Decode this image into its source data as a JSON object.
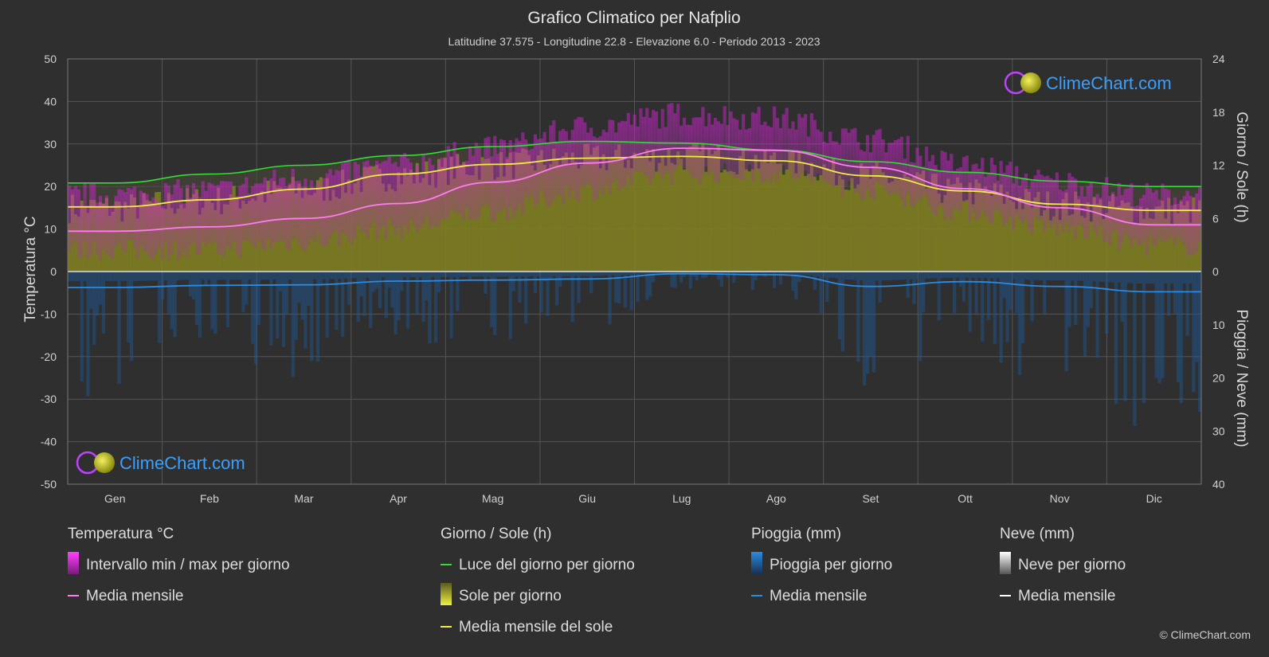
{
  "header": {
    "title": "Grafico Climatico per Nafplio",
    "subtitle": "Latitudine 37.575 - Longitudine 22.8 - Elevazione 6.0 - Periodo 2013 - 2023"
  },
  "logo_text": "ClimeChart.com",
  "copyright": "© ClimeChart.com",
  "chart_data": {
    "type": "area",
    "categories": [
      "Gen",
      "Feb",
      "Mar",
      "Apr",
      "Mag",
      "Giu",
      "Lug",
      "Ago",
      "Set",
      "Ott",
      "Nov",
      "Dic"
    ],
    "left_axis": {
      "label": "Temperatura °C",
      "range": [
        -50,
        50
      ],
      "ticks": [
        50,
        40,
        30,
        20,
        10,
        0,
        -10,
        -20,
        -30,
        -40,
        -50
      ]
    },
    "right_axis_top": {
      "label": "Giorno / Sole (h)",
      "range": [
        0,
        24
      ],
      "ticks": [
        24,
        18,
        12,
        6,
        0
      ]
    },
    "right_axis_bottom": {
      "label": "Pioggia / Neve (mm)",
      "range": [
        0,
        40
      ],
      "ticks": [
        0,
        10,
        20,
        30,
        40
      ]
    },
    "grid": true,
    "series": [
      {
        "name": "Intervallo min / max per giorno",
        "kind": "band",
        "axis": "temp",
        "min": [
          5,
          5,
          7,
          10,
          14,
          19,
          23,
          23,
          19,
          14,
          10,
          6
        ],
        "max": [
          18,
          19,
          22,
          25,
          29,
          34,
          37,
          36,
          31,
          25,
          21,
          18
        ]
      },
      {
        "name": "Media mensile",
        "kind": "line",
        "axis": "temp",
        "color": "#ff7cf0",
        "values": [
          9.5,
          10.5,
          12.5,
          16,
          21,
          25.5,
          29,
          28.5,
          24.5,
          19.5,
          15,
          11
        ]
      },
      {
        "name": "Luce del giorno per giorno",
        "kind": "line",
        "axis": "hours",
        "color": "#33dd33",
        "values": [
          10.0,
          11.0,
          12.0,
          13.1,
          14.1,
          14.7,
          14.5,
          13.7,
          12.4,
          11.2,
          10.2,
          9.6
        ]
      },
      {
        "name": "Sole per giorno",
        "kind": "area",
        "axis": "hours",
        "color": "#8a8a1e",
        "values": [
          7.2,
          8.0,
          9.2,
          10.8,
          12.0,
          12.7,
          13.0,
          12.5,
          10.7,
          9.0,
          7.5,
          6.9
        ]
      },
      {
        "name": "Media mensile del sole",
        "kind": "line",
        "axis": "hours",
        "color": "#eeee44",
        "values": [
          7.3,
          8.1,
          9.3,
          11.0,
          12.1,
          12.8,
          13.0,
          12.5,
          10.8,
          9.1,
          7.6,
          6.9
        ]
      },
      {
        "name": "Pioggia per giorno",
        "kind": "bars",
        "axis": "precip",
        "color": "#1e5a9a"
      },
      {
        "name": "Media mensile",
        "kind": "line",
        "axis": "precip",
        "color": "#2a8be0",
        "values": [
          3.0,
          2.6,
          2.5,
          1.8,
          1.6,
          1.4,
          0.4,
          0.6,
          2.8,
          1.9,
          2.8,
          3.8
        ]
      },
      {
        "name": "Neve per giorno",
        "kind": "bars",
        "axis": "precip",
        "color": "#e0e0e0"
      },
      {
        "name": "Media mensile",
        "kind": "line",
        "axis": "precip",
        "color": "#ffffff",
        "values": [
          0,
          0,
          0,
          0,
          0,
          0,
          0,
          0,
          0,
          0,
          0,
          0
        ]
      }
    ]
  },
  "legend": {
    "groups": [
      {
        "title": "Temperatura °C",
        "items": [
          {
            "label": "Intervallo min / max per giorno",
            "swatch": "rect",
            "color": "#e030d8"
          },
          {
            "label": "Media mensile",
            "swatch": "line",
            "color": "#ff7cf0"
          }
        ]
      },
      {
        "title": "Giorno / Sole (h)",
        "items": [
          {
            "label": "Luce del giorno per giorno",
            "swatch": "line",
            "color": "#33dd33"
          },
          {
            "label": "Sole per giorno",
            "swatch": "rect",
            "color": "#d8d83a"
          },
          {
            "label": "Media mensile del sole",
            "swatch": "line",
            "color": "#eeee44"
          }
        ]
      },
      {
        "title": "Pioggia (mm)",
        "items": [
          {
            "label": "Pioggia per giorno",
            "swatch": "rect",
            "color": "#2a8be0"
          },
          {
            "label": "Media mensile",
            "swatch": "line",
            "color": "#2a8be0"
          }
        ]
      },
      {
        "title": "Neve (mm)",
        "items": [
          {
            "label": "Neve per giorno",
            "swatch": "rect",
            "color": "#e8e8e8"
          },
          {
            "label": "Media mensile",
            "swatch": "line",
            "color": "#ffffff"
          }
        ]
      }
    ]
  }
}
